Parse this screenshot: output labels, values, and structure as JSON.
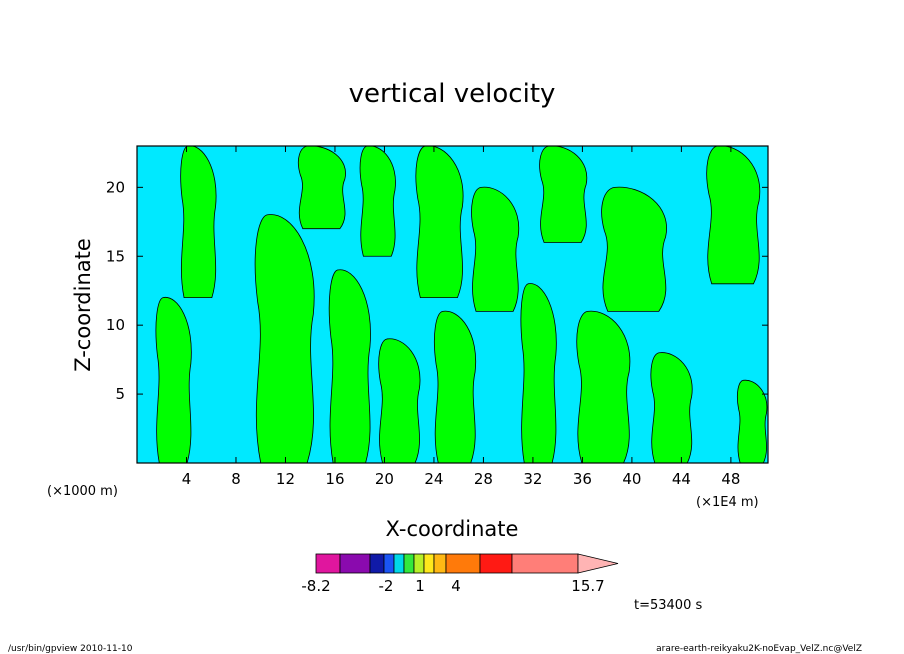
{
  "chart_data": {
    "type": "heatmap",
    "title": "vertical velocity",
    "xlabel": "X-coordinate",
    "ylabel": "Z-coordinate",
    "x_unit_left": "(×1000 m)",
    "x_unit_right": "(×1E4 m)",
    "xlim": [
      0,
      51
    ],
    "ylim": [
      0,
      23
    ],
    "x_ticks": [
      4,
      8,
      12,
      16,
      20,
      24,
      28,
      32,
      36,
      40,
      44,
      48
    ],
    "y_ticks": [
      5,
      10,
      15,
      20
    ],
    "colorbar": {
      "ticks": [
        "-8.2",
        "-2",
        "1",
        "4",
        "15.7"
      ],
      "colors": [
        "#e0169e",
        "#8a0aae",
        "#101aa8",
        "#1a55f5",
        "#00d8e8",
        "#33e83c",
        "#b8f028",
        "#ffe81c",
        "#ffb814",
        "#ff7a0a",
        "#ff1a14",
        "#ff7e78",
        "#ffb4b4"
      ]
    },
    "time_label": "t=53400 s",
    "fill_colors": {
      "negative": "#00e9ff",
      "positive": "#00ff00"
    },
    "green_regions": [
      {
        "x": [
          1.5,
          4.5
        ],
        "y": [
          0,
          12
        ]
      },
      {
        "x": [
          3.5,
          6.5
        ],
        "y": [
          12,
          23
        ]
      },
      {
        "x": [
          9.5,
          14.5
        ],
        "y": [
          0,
          18
        ]
      },
      {
        "x": [
          13,
          17
        ],
        "y": [
          17,
          23
        ]
      },
      {
        "x": [
          15.5,
          19
        ],
        "y": [
          0,
          14
        ]
      },
      {
        "x": [
          18,
          21
        ],
        "y": [
          15,
          23
        ]
      },
      {
        "x": [
          19.5,
          23
        ],
        "y": [
          0,
          9
        ]
      },
      {
        "x": [
          22.5,
          26.5
        ],
        "y": [
          12,
          23
        ]
      },
      {
        "x": [
          24,
          27.5
        ],
        "y": [
          0,
          11
        ]
      },
      {
        "x": [
          27,
          31
        ],
        "y": [
          11,
          20
        ]
      },
      {
        "x": [
          31,
          34
        ],
        "y": [
          0,
          13
        ]
      },
      {
        "x": [
          32.5,
          36.5
        ],
        "y": [
          16,
          23
        ]
      },
      {
        "x": [
          35.5,
          40
        ],
        "y": [
          0,
          11
        ]
      },
      {
        "x": [
          37.5,
          43
        ],
        "y": [
          11,
          20
        ]
      },
      {
        "x": [
          41.5,
          45
        ],
        "y": [
          0,
          8
        ]
      },
      {
        "x": [
          46,
          50.5
        ],
        "y": [
          13,
          23
        ]
      },
      {
        "x": [
          48.5,
          51
        ],
        "y": [
          0,
          6
        ]
      }
    ]
  },
  "footer": {
    "left": "/usr/bin/gpview   2010-11-10",
    "right": "arare-earth-reikyaku2K-noEvap_VelZ.nc@VelZ"
  }
}
